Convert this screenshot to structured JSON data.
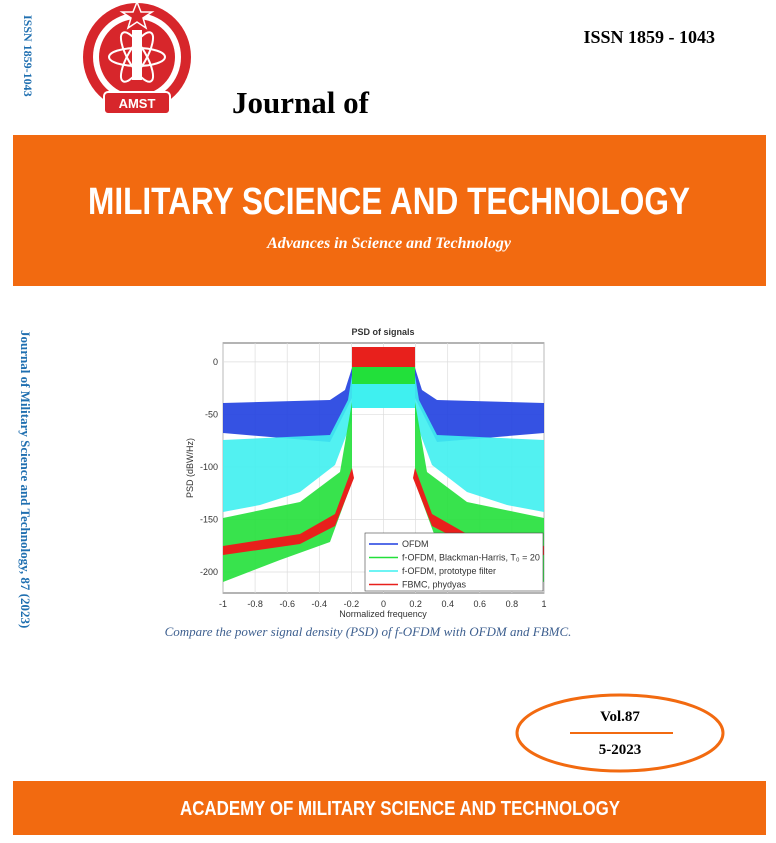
{
  "header": {
    "issn_vertical": "ISSN 1859-1043",
    "issn": "ISSN 1859 - 1043",
    "logo_text": "AMST",
    "journal_of": "Journal of"
  },
  "banner": {
    "title": "MILITARY SCIENCE AND TECHNOLOGY",
    "subtitle": "Advances in Science and Technology"
  },
  "spine": "Journal of Military Science and Technology, 87 (2023)",
  "figure": {
    "title": "PSD of signals",
    "xlabel": "Normalized frequency",
    "ylabel": "PSD (dBW/Hz)",
    "xlim": [
      -1,
      1
    ],
    "ylim": [
      -220,
      18
    ],
    "xticks": [
      -1,
      -0.8,
      -0.6,
      -0.4,
      -0.2,
      0,
      0.2,
      0.4,
      0.6,
      0.8,
      1
    ],
    "yticks": [
      0,
      -50,
      -100,
      -150,
      -200
    ],
    "legend": [
      {
        "name": "OFDM",
        "color": "#1f3fe0"
      },
      {
        "name": "f-OFDM, Blackman-Harris, T₀ = 20",
        "color": "#22e03a"
      },
      {
        "name": "f-OFDM, prototype filter",
        "color": "#3ff0f0"
      },
      {
        "name": "FBMC, phydyas",
        "color": "#e8201c"
      }
    ]
  },
  "caption": "Compare the power signal density (PSD) of f-OFDM with OFDM and FBMC.",
  "issue_box": {
    "volume": "Vol.87",
    "issue": "5-2023"
  },
  "footer": "ACADEMY OF MILITARY SCIENCE AND TECHNOLOGY"
}
